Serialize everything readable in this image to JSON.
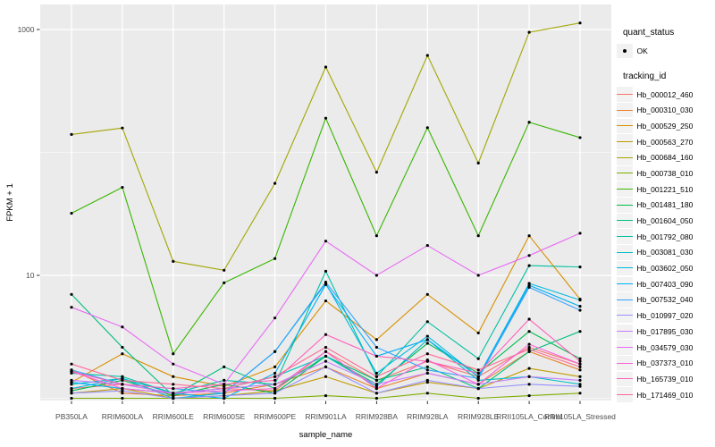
{
  "figure": {
    "background": "#FFFFFF",
    "panel_bg": "#EBEBEB",
    "grid_color": "#FFFFFF",
    "tick_color": "#333333",
    "axis_text_color": "#4D4D4D",
    "title_text_color": "#000000",
    "legend_key_bg": "#F2F2F2",
    "point_color": "#000000"
  },
  "legend": {
    "quant_status": {
      "title": "quant_status",
      "items": [
        {
          "label": "OK",
          "marker": "point-icon",
          "color": "#000000"
        }
      ]
    },
    "tracking_id": {
      "title": "tracking_id"
    }
  },
  "chart_data": {
    "type": "line",
    "title": "",
    "xlabel": "sample_name",
    "ylabel": "FPKM + 1",
    "y_scale": "log10",
    "grid": true,
    "legend_position": "right",
    "y_axis_ticks": [
      10,
      1000
    ],
    "y_minor_gridlines": [
      1,
      100
    ],
    "ylim": [
      0.9,
      1600
    ],
    "categories": [
      "PB350LA",
      "RRIM600LA",
      "RRIM600LE",
      "RRIM600SE",
      "RRIM600PE",
      "RRIM901LA",
      "RRIM928BA",
      "RRIM928LA",
      "RRIM928LE",
      "RRII105LA_Control",
      "RRII105LA_Stressed"
    ],
    "series": [
      {
        "name": "Hb_000012_460",
        "color": "#F8766D",
        "values": [
          1.2,
          1.3,
          1.1,
          1.2,
          1.15,
          2.4,
          1.4,
          2.0,
          1.5,
          2.6,
          1.9
        ]
      },
      {
        "name": "Hb_000310_030",
        "color": "#EA8331",
        "values": [
          1.7,
          1.1,
          1.05,
          1.1,
          1.3,
          1.8,
          1.2,
          1.6,
          1.3,
          2.4,
          1.7
        ]
      },
      {
        "name": "Hb_000529_250",
        "color": "#D89000",
        "values": [
          1.35,
          2.3,
          1.5,
          1.25,
          1.8,
          6.2,
          3.0,
          7.0,
          3.4,
          21,
          6.4
        ]
      },
      {
        "name": "Hb_000563_270",
        "color": "#C09B00",
        "values": [
          1.1,
          1.2,
          1.0,
          1.05,
          1.15,
          1.5,
          1.1,
          1.35,
          1.2,
          1.75,
          1.5
        ]
      },
      {
        "name": "Hb_000684_160",
        "color": "#A3A500",
        "values": [
          140,
          158,
          13,
          11,
          56,
          495,
          69,
          615,
          82,
          950,
          1130
        ]
      },
      {
        "name": "Hb_000738_010",
        "color": "#7CAE00",
        "values": [
          1.0,
          1.0,
          1.0,
          1.0,
          1.0,
          1.05,
          1.0,
          1.1,
          1.0,
          1.05,
          1.1
        ]
      },
      {
        "name": "Hb_001221_510",
        "color": "#39B600",
        "values": [
          32,
          52,
          2.3,
          8.7,
          13.7,
          190,
          21,
          159,
          21,
          176,
          132
        ]
      },
      {
        "name": "Hb_001481_180",
        "color": "#00BB4E",
        "values": [
          1.15,
          1.4,
          1.05,
          1.3,
          1.1,
          2.2,
          1.3,
          2.8,
          1.6,
          3.5,
          2.1
        ]
      },
      {
        "name": "Hb_001604_050",
        "color": "#00BF7D",
        "values": [
          7.0,
          2.6,
          1.05,
          1.8,
          1.2,
          2.2,
          1.4,
          1.8,
          1.2,
          2.4,
          3.5
        ]
      },
      {
        "name": "Hb_001792_080",
        "color": "#00C1A3",
        "values": [
          1.6,
          1.5,
          1.1,
          1.4,
          1.3,
          10.8,
          1.5,
          4.2,
          2.1,
          12,
          11.7
        ]
      },
      {
        "name": "Hb_003081_030",
        "color": "#00BFC4",
        "values": [
          1.3,
          1.45,
          1.1,
          1.2,
          1.5,
          2.2,
          1.25,
          3.0,
          1.4,
          1.5,
          1.3
        ]
      },
      {
        "name": "Hb_003602_050",
        "color": "#00BAE0",
        "values": [
          1.2,
          1.45,
          1.0,
          1.1,
          2.4,
          8.6,
          1.6,
          3.2,
          1.5,
          8.6,
          6.3
        ]
      },
      {
        "name": "Hb_007403_090",
        "color": "#00B0F6",
        "values": [
          1.35,
          1.2,
          1.1,
          1.0,
          1.6,
          8.4,
          2.2,
          3.0,
          1.5,
          8.3,
          5.6
        ]
      },
      {
        "name": "Hb_007532_040",
        "color": "#35A2FF",
        "values": [
          1.7,
          1.3,
          1.2,
          1.1,
          2.4,
          8.8,
          2.6,
          1.7,
          1.45,
          8.0,
          5.2
        ]
      },
      {
        "name": "Hb_010997_020",
        "color": "#9590FF",
        "values": [
          1.1,
          1.15,
          1.0,
          1.05,
          1.1,
          1.8,
          1.1,
          1.4,
          1.2,
          1.3,
          1.25
        ]
      },
      {
        "name": "Hb_017895_030",
        "color": "#C77CFF",
        "values": [
          1.4,
          1.3,
          1.1,
          1.2,
          1.3,
          2.0,
          1.3,
          1.6,
          1.3,
          1.5,
          1.4
        ]
      },
      {
        "name": "Hb_034579_030",
        "color": "#E76BF3",
        "values": [
          5.5,
          3.8,
          1.9,
          1.3,
          4.5,
          19,
          10,
          17.5,
          10,
          14.5,
          22
        ]
      },
      {
        "name": "Hb_037373_010",
        "color": "#FA62DB",
        "values": [
          1.65,
          1.2,
          1.1,
          1.15,
          1.2,
          2.4,
          1.2,
          2.05,
          1.3,
          2.75,
          1.9
        ]
      },
      {
        "name": "Hb_165739_010",
        "color": "#FF62BC",
        "values": [
          1.65,
          1.3,
          1.2,
          1.3,
          1.4,
          3.3,
          2.2,
          2.0,
          1.6,
          4.4,
          2.0
        ]
      },
      {
        "name": "Hb_171469_010",
        "color": "#FF6A98",
        "values": [
          1.9,
          1.4,
          1.3,
          1.2,
          1.5,
          2.6,
          1.5,
          2.3,
          1.7,
          2.5,
          1.8
        ]
      }
    ]
  }
}
